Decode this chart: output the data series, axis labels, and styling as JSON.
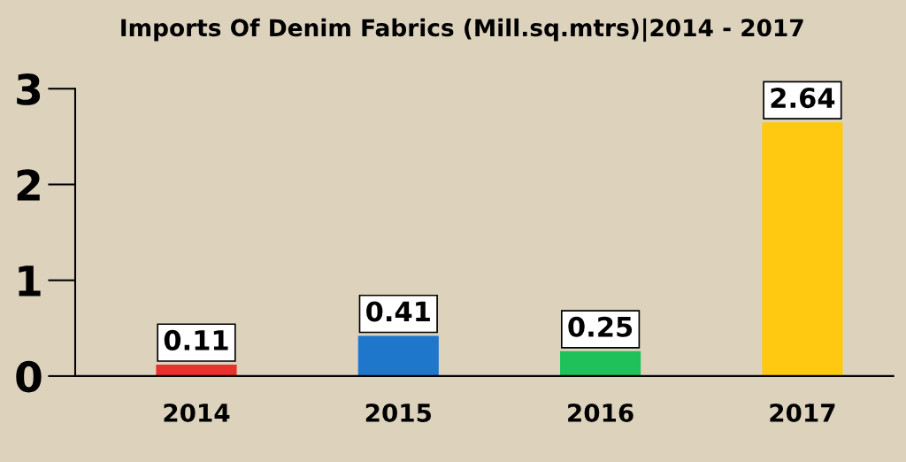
{
  "chart_data": {
    "type": "bar",
    "title": "Imports Of Denim Fabrics (Mill.sq.mtrs)|2014 - 2017",
    "categories": [
      "2014",
      "2015",
      "2016",
      "2017"
    ],
    "values": [
      0.11,
      0.41,
      0.25,
      2.64
    ],
    "colors": [
      "#e8302c",
      "#1f77cc",
      "#1ec15a",
      "#ffc911"
    ],
    "ylim": [
      0,
      3
    ],
    "yticks": [
      0,
      1,
      2,
      3
    ],
    "grid": false,
    "legend": false,
    "data_labels": true
  }
}
